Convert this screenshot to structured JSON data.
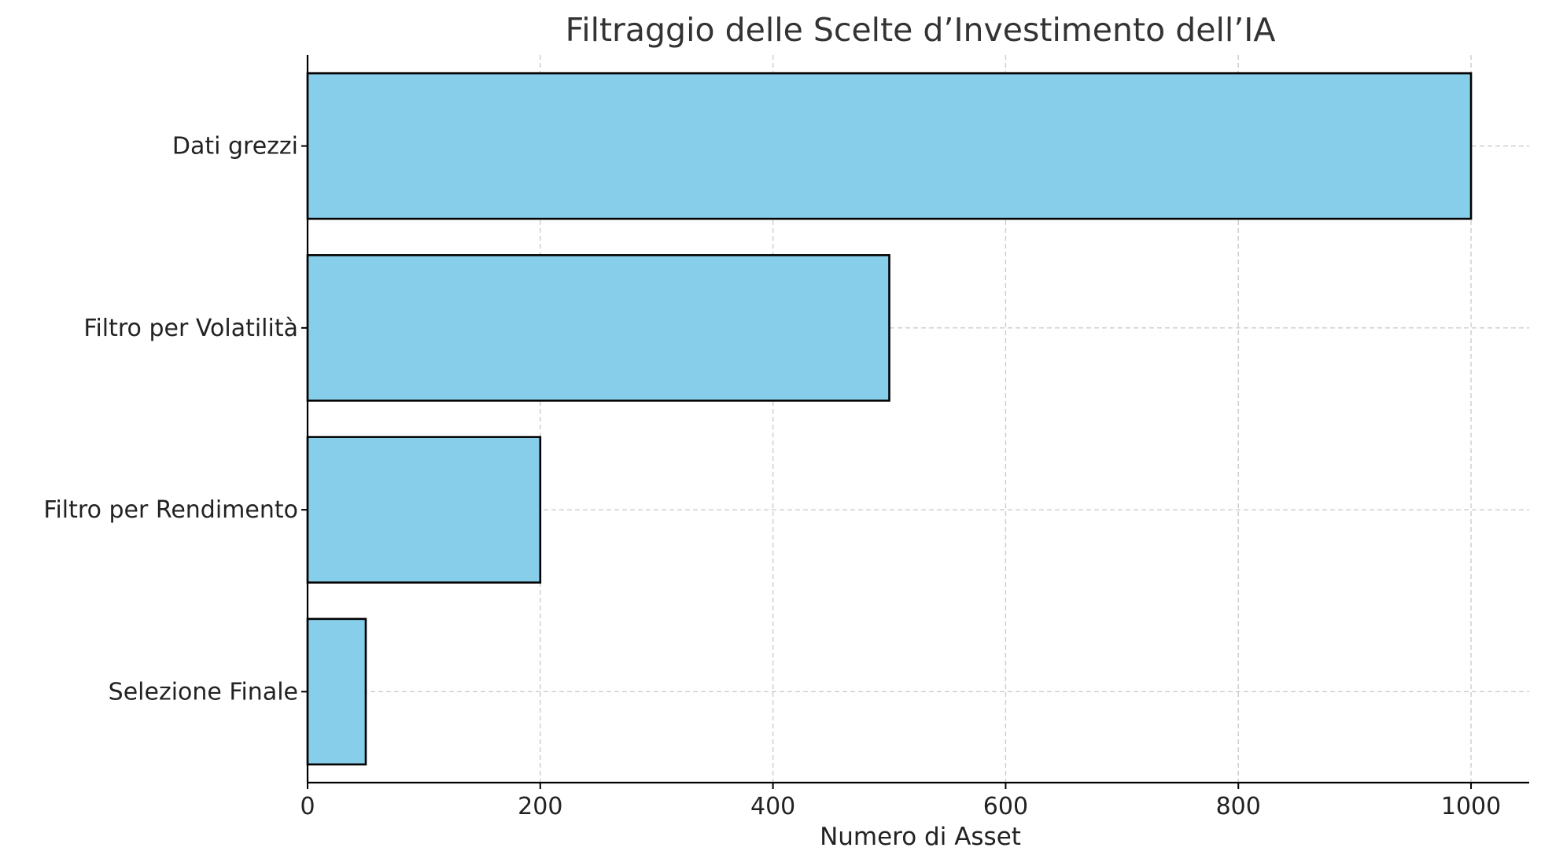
{
  "chart_data": {
    "type": "bar",
    "orientation": "horizontal",
    "title": "Filtraggio delle Scelte d’Investimento dell’IA",
    "xlabel": "Numero di Asset",
    "ylabel": "",
    "categories": [
      "Dati grezzi",
      "Filtro per Volatilità",
      "Filtro per Rendimento",
      "Selezione Finale"
    ],
    "values": [
      1000,
      500,
      200,
      50
    ],
    "xlim": [
      0,
      1050
    ],
    "xticks": [
      0,
      200,
      400,
      600,
      800,
      1000
    ],
    "grid": true,
    "bar_color": "#87CEEB",
    "bar_edge_color": "#000000"
  }
}
